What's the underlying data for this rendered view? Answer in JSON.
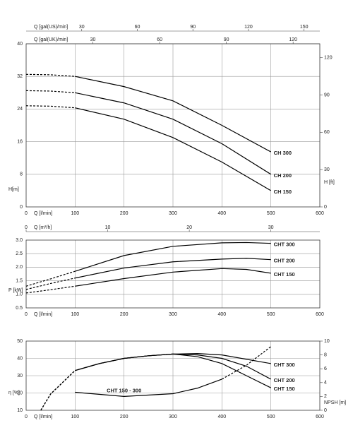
{
  "chart_data": [
    {
      "type": "line",
      "xlabel": "Q [l/min]",
      "ylabel": "H[m]",
      "y2label": "H [ft]",
      "xlim": [
        0,
        600
      ],
      "xticks": [
        0,
        100,
        200,
        300,
        400,
        500,
        600
      ],
      "ylim": [
        0,
        40
      ],
      "yticks": [
        0,
        8,
        16,
        24,
        32,
        40
      ],
      "y2lim": [
        0,
        131.2
      ],
      "y2ticks": [
        0,
        30,
        60,
        90,
        120
      ],
      "top_axes": [
        {
          "label": "Q [gal(US)/min]",
          "lim": [
            0,
            158.5
          ],
          "ticks": [
            30,
            60,
            90,
            120,
            150
          ]
        },
        {
          "label": "Q [gal(UK)/min]",
          "lim": [
            0,
            132
          ],
          "ticks": [
            30,
            60,
            90,
            120
          ]
        }
      ],
      "grid": true,
      "series": [
        {
          "name": "CH 300",
          "color": "#000000",
          "x": [
            100,
            200,
            300,
            400,
            500
          ],
          "values": [
            32,
            29.5,
            26,
            20,
            13.5
          ],
          "extrapolated": {
            "x": [
              0,
              50,
              100
            ],
            "values": [
              32.5,
              32.4,
              32
            ]
          }
        },
        {
          "name": "CH 200",
          "color": "#000000",
          "x": [
            100,
            200,
            300,
            400,
            500
          ],
          "values": [
            28,
            25.5,
            21.5,
            15.5,
            8
          ],
          "extrapolated": {
            "x": [
              0,
              50,
              100
            ],
            "values": [
              28.5,
              28.4,
              28
            ]
          }
        },
        {
          "name": "CH 150",
          "color": "#000000",
          "x": [
            100,
            200,
            300,
            400,
            500
          ],
          "values": [
            24.3,
            21.5,
            17,
            11,
            4
          ],
          "extrapolated": {
            "x": [
              0,
              50,
              100
            ],
            "values": [
              24.8,
              24.7,
              24.3
            ]
          }
        }
      ]
    },
    {
      "type": "line",
      "xlabel": "Q [l/min]",
      "ylabel": "P [kW]",
      "xlim": [
        0,
        600
      ],
      "xticks": [
        0,
        100,
        200,
        300,
        400,
        500,
        600
      ],
      "ylim": [
        0.5,
        3.0
      ],
      "yticks": [
        0.5,
        {
          "value": 1.0,
          "label": "1.0"
        },
        1.5,
        {
          "value": 2.0,
          "label": "2.0"
        },
        2.5,
        {
          "value": 3.0,
          "label": "3.0"
        }
      ],
      "top_axes": [
        {
          "label": "Q [m³/h]",
          "lim": [
            0,
            36
          ],
          "ticks": [
            0,
            10,
            20,
            30
          ]
        }
      ],
      "grid": true,
      "series": [
        {
          "name": "CHT 300",
          "color": "#000000",
          "x": [
            100,
            200,
            300,
            400,
            450,
            500
          ],
          "values": [
            1.85,
            2.43,
            2.77,
            2.9,
            2.91,
            2.88
          ],
          "extrapolated": {
            "x": [
              0,
              50,
              100
            ],
            "values": [
              1.3,
              1.57,
              1.85
            ]
          }
        },
        {
          "name": "CHT 200",
          "color": "#000000",
          "x": [
            100,
            200,
            300,
            400,
            450,
            500
          ],
          "values": [
            1.6,
            1.97,
            2.2,
            2.3,
            2.33,
            2.28
          ],
          "extrapolated": {
            "x": [
              0,
              50,
              100
            ],
            "values": [
              1.18,
              1.4,
              1.6
            ]
          }
        },
        {
          "name": "CHT 150",
          "color": "#000000",
          "x": [
            100,
            200,
            300,
            400,
            450,
            500
          ],
          "values": [
            1.3,
            1.58,
            1.82,
            1.95,
            1.92,
            1.78
          ],
          "extrapolated": {
            "x": [
              0,
              50,
              100
            ],
            "values": [
              1.05,
              1.17,
              1.3
            ]
          }
        }
      ]
    },
    {
      "type": "line",
      "xlabel": "Q [l/min]",
      "ylabel": "η [%]",
      "y2label": "NPSH [m]",
      "xlim": [
        0,
        600
      ],
      "xticks": [
        0,
        100,
        200,
        300,
        400,
        500,
        600
      ],
      "ylim": [
        10,
        50
      ],
      "yticks": [
        10,
        20,
        30,
        40,
        50
      ],
      "y2lim": [
        0,
        10
      ],
      "y2ticks": [
        0,
        2,
        4,
        6,
        8,
        10
      ],
      "grid": true,
      "series": [
        {
          "name": "CHT 300",
          "color": "#000000",
          "x": [
            100,
            150,
            200,
            250,
            300,
            350,
            400,
            450,
            500
          ],
          "values": [
            33,
            37,
            40,
            41.5,
            42.5,
            42.8,
            42,
            39.5,
            37
          ],
          "extrapolated": {
            "x": [
              30,
              50,
              100
            ],
            "values": [
              10,
              19.4,
              33
            ]
          }
        },
        {
          "name": "CHT 200",
          "color": "#000000",
          "x": [
            100,
            150,
            200,
            250,
            300,
            350,
            400,
            450,
            500
          ],
          "values": [
            33,
            37,
            40,
            41.5,
            42.5,
            42,
            40,
            35.5,
            28
          ],
          "extrapolated": {
            "x": [
              30,
              50,
              100
            ],
            "values": [
              10,
              19.4,
              33
            ]
          }
        },
        {
          "name": "CHT 150",
          "color": "#000000",
          "x": [
            100,
            150,
            200,
            250,
            300,
            350,
            400,
            450,
            500
          ],
          "values": [
            33,
            37,
            40,
            41.5,
            42.5,
            41,
            37,
            30,
            23
          ],
          "extrapolated": {
            "x": [
              30,
              50,
              100
            ],
            "values": [
              10,
              19.4,
              33
            ]
          }
        },
        {
          "name": "CHT 150 - 300",
          "color": "#000000",
          "axis": "y2",
          "x": [
            100,
            200,
            300,
            350,
            400
          ],
          "values": [
            2.6,
            2.0,
            2.4,
            3.2,
            4.5
          ],
          "extrapolated": {
            "x": [
              400,
              450,
              500
            ],
            "values": [
              4.5,
              6.5,
              9.2
            ]
          }
        }
      ]
    }
  ]
}
